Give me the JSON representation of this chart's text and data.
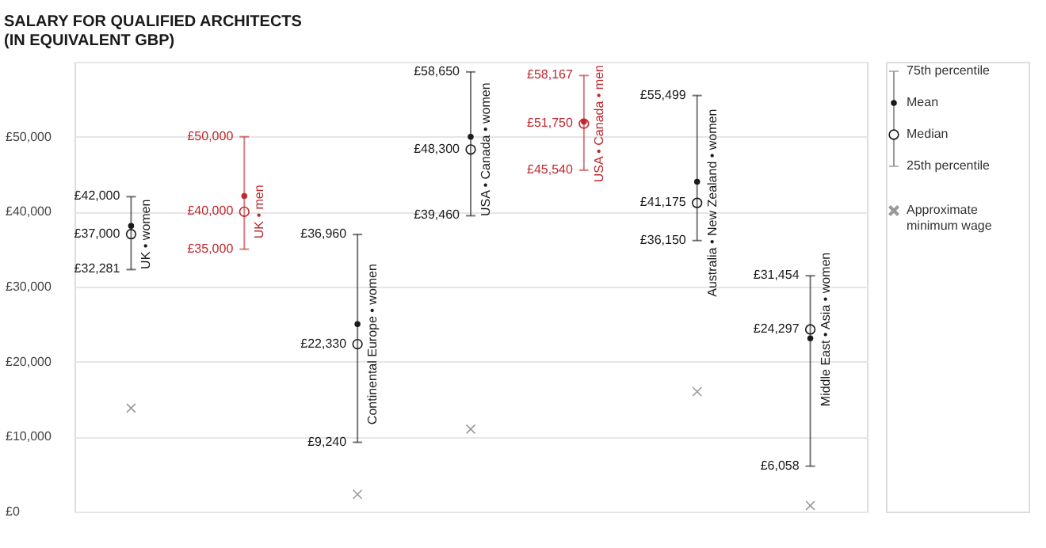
{
  "chart_data": {
    "type": "scatter",
    "title": "SALARY FOR QUALIFIED ARCHITECTS\n(IN EQUIVALENT GBP)",
    "categories": [
      "UK • women",
      "UK • men",
      "Continental Europe • women",
      "USA • Canada • women",
      "USA • Canada • men",
      "Australia • New Zealand • women",
      "Middle East • Asia • women"
    ],
    "series": [
      {
        "name": "Mean",
        "type": "scatter",
        "marker": "circle",
        "colors": [
          "#1a1a1a",
          "#c0282d",
          "#1a1a1a",
          "#1a1a1a",
          "#c0282d",
          "#1a1a1a",
          "#1a1a1a"
        ],
        "values": [
          38100,
          42100,
          25000,
          50000,
          52000,
          44000,
          23100
        ],
        "errors": [
          [
            32281,
            42000
          ],
          [
            35000,
            50000
          ],
          [
            9240,
            36960
          ],
          [
            39460,
            58650
          ],
          [
            45540,
            58167
          ],
          [
            36150,
            55499
          ],
          [
            6058,
            31454
          ]
        ]
      },
      {
        "name": "Median",
        "type": "scatter",
        "marker": "circle",
        "colors": [
          "#1a1a1a",
          "#c0282d",
          "#1a1a1a",
          "#1a1a1a",
          "#c0282d",
          "#1a1a1a",
          "#1a1a1a"
        ],
        "values": [
          37000,
          40000,
          22330,
          48300,
          51750,
          41175,
          24297
        ],
        "value_labels": [
          "£37,000",
          "£40,000",
          "£22,330",
          "£48,300",
          "£51,750",
          "£41,175",
          "£24,297"
        ]
      },
      {
        "name": "Approximate minimum wage",
        "type": "scatter",
        "marker": "cross",
        "color": "#999999",
        "values": [
          13800,
          null,
          2300,
          11000,
          null,
          16000,
          800
        ]
      }
    ],
    "annotations": [
      "75th percentile",
      "25th percentile",
      {
        "text": "£42,000",
        "x": "UK • women",
        "y": 42000
      },
      {
        "text": "£32,281",
        "x": "UK • women",
        "y": 32281
      },
      {
        "text": "£50,000",
        "x": "UK • men",
        "y": 50000
      },
      {
        "text": "£35,000",
        "x": "UK • men",
        "y": 35000
      },
      {
        "text": "£36,960",
        "x": "Continental Europe • women",
        "y": 36960
      },
      {
        "text": "£9,240",
        "x": "Continental Europe • women",
        "y": 9240
      },
      {
        "text": "£58,650",
        "x": "USA • Canada • women",
        "y": 58650
      },
      {
        "text": "£39,460",
        "x": "USA • Canada • women",
        "y": 39460
      },
      {
        "text": "£58,167",
        "x": "USA • Canada • men",
        "y": 58167
      },
      {
        "text": "£45,540",
        "x": "USA • Canada • men",
        "y": 45540
      },
      {
        "text": "£55,499",
        "x": "Australia • New Zealand • women",
        "y": 55499
      },
      {
        "text": "£36,150",
        "x": "Australia • New Zealand • women",
        "y": 36150
      },
      {
        "text": "£31,454",
        "x": "Middle East • Asia • women",
        "y": 31454
      },
      {
        "text": "£6,058",
        "x": "Middle East • Asia • women",
        "y": 6058
      }
    ],
    "ylim": [
      0,
      60000
    ],
    "yticks": [
      {
        "value": 0,
        "label": "£0"
      },
      {
        "value": 10000,
        "label": "£10,000"
      },
      {
        "value": 20000,
        "label": "£20,000"
      },
      {
        "value": 30000,
        "label": "£30,000"
      },
      {
        "value": 40000,
        "label": "£40,000"
      },
      {
        "value": 50000,
        "label": "£50,000"
      },
      {
        "value": 60000,
        "label": null
      }
    ],
    "grid": "y",
    "legend": "right",
    "tick_labels": "y"
  }
}
